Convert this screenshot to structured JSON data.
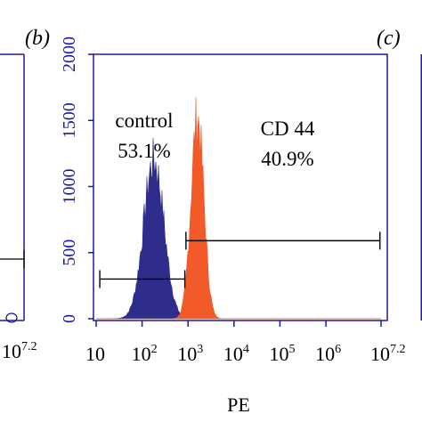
{
  "chart_data": {
    "type": "histogram",
    "xlabel": "PE",
    "x_scale": "log",
    "xlim": [
      10,
      15848932
    ],
    "ylim": [
      0,
      2000
    ],
    "y_ticks": [
      "0",
      "500",
      "1000",
      "1500",
      "2000"
    ],
    "x_ticks": [
      {
        "base": "10",
        "exp": "",
        "value": 10
      },
      {
        "base": "10",
        "exp": "2",
        "value": 100
      },
      {
        "base": "10",
        "exp": "3",
        "value": 1000
      },
      {
        "base": "10",
        "exp": "4",
        "value": 10000
      },
      {
        "base": "10",
        "exp": "5",
        "value": 100000
      },
      {
        "base": "10",
        "exp": "6",
        "value": 1000000
      },
      {
        "base": "10",
        "exp": "7.2",
        "value": 15848932
      }
    ],
    "left_partial_tick": {
      "base": "10",
      "exp": "7.2"
    },
    "panels": [
      {
        "label": "(b)"
      },
      {
        "label": "(c)"
      }
    ],
    "series": [
      {
        "color": "#2e2d8c",
        "annotation_name": "control",
        "annotation_pct": "53.1%",
        "peak_x": 180,
        "peak_y": 1230,
        "log_sigma": 0.22
      },
      {
        "color": "#f25a2a",
        "annotation_name": "CD 44",
        "annotation_pct": "40.9%",
        "peak_x": 1600,
        "peak_y": 1560,
        "log_sigma": 0.14
      }
    ],
    "gates": [
      {
        "x_start": 12,
        "x_end": 850,
        "y": 300
      },
      {
        "x_start": 900,
        "x_end": 15000000,
        "y": 590
      }
    ],
    "left_gate": {
      "y": 590
    }
  }
}
